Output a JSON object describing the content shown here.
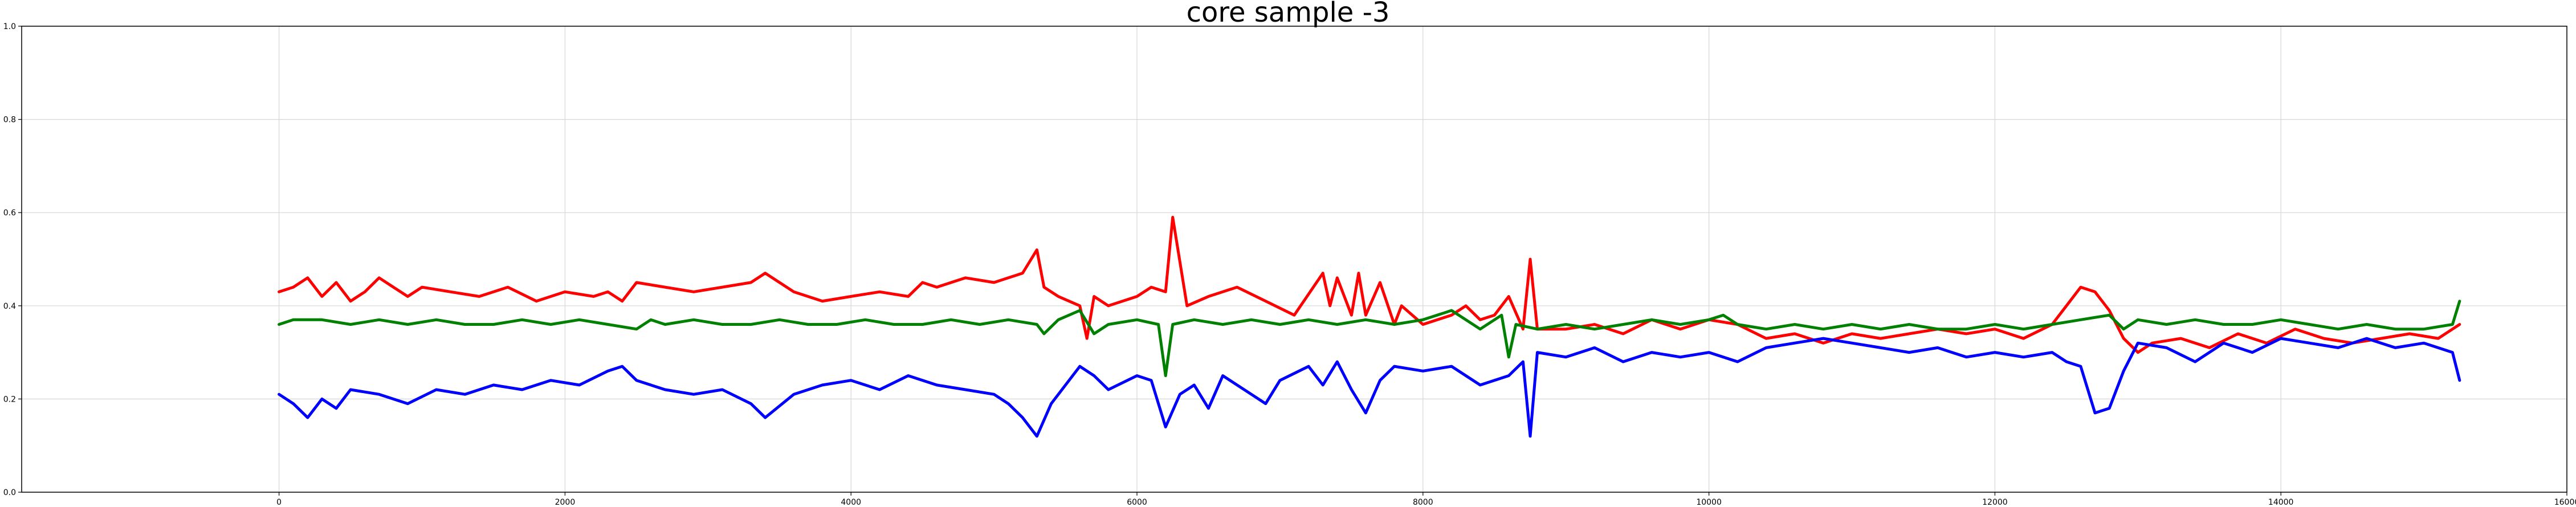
{
  "chart_data": {
    "type": "line",
    "title": "core sample -3",
    "xlabel": "",
    "ylabel": "",
    "xlim": [
      -1800,
      16000
    ],
    "ylim": [
      0.0,
      1.0
    ],
    "xticks": [
      0,
      2000,
      4000,
      6000,
      8000,
      10000,
      12000,
      14000,
      16000
    ],
    "xtick_labels": [
      "0",
      "2000",
      "4000",
      "6000",
      "8000",
      "10000",
      "12000",
      "14000",
      "16000"
    ],
    "yticks": [
      0.0,
      0.2,
      0.4,
      0.6,
      0.8,
      1.0
    ],
    "ytick_labels": [
      "0.0",
      "0.2",
      "0.4",
      "0.6",
      "0.8",
      "1.0"
    ],
    "grid": true,
    "colors": {
      "red": "#ff0000",
      "green": "#008000",
      "blue": "#0000ff",
      "grid": "#d6d6d6"
    },
    "series": [
      {
        "color": "red",
        "x": [
          0,
          100,
          200,
          300,
          400,
          500,
          600,
          700,
          800,
          900,
          1000,
          1200,
          1400,
          1600,
          1800,
          2000,
          2200,
          2300,
          2400,
          2500,
          2700,
          2900,
          3100,
          3300,
          3400,
          3600,
          3800,
          4000,
          4200,
          4400,
          4500,
          4600,
          4800,
          5000,
          5200,
          5300,
          5350,
          5450,
          5600,
          5650,
          5700,
          5800,
          6000,
          6100,
          6200,
          6250,
          6350,
          6500,
          6700,
          6900,
          7100,
          7300,
          7350,
          7400,
          7500,
          7550,
          7600,
          7700,
          7800,
          7850,
          8000,
          8200,
          8300,
          8400,
          8500,
          8600,
          8700,
          8750,
          8800,
          9000,
          9200,
          9400,
          9600,
          9800,
          10000,
          10200,
          10400,
          10600,
          10800,
          11000,
          11200,
          11400,
          11600,
          11800,
          12000,
          12200,
          12400,
          12500,
          12600,
          12700,
          12800,
          12900,
          13000,
          13100,
          13300,
          13500,
          13700,
          13900,
          14100,
          14300,
          14500,
          14700,
          14900,
          15100,
          15200,
          15250
        ],
        "y": [
          0.43,
          0.44,
          0.46,
          0.42,
          0.45,
          0.41,
          0.43,
          0.46,
          0.44,
          0.42,
          0.44,
          0.43,
          0.42,
          0.44,
          0.41,
          0.43,
          0.42,
          0.43,
          0.41,
          0.45,
          0.44,
          0.43,
          0.44,
          0.45,
          0.47,
          0.43,
          0.41,
          0.42,
          0.43,
          0.42,
          0.45,
          0.44,
          0.46,
          0.45,
          0.47,
          0.52,
          0.44,
          0.42,
          0.4,
          0.33,
          0.42,
          0.4,
          0.42,
          0.44,
          0.43,
          0.59,
          0.4,
          0.42,
          0.44,
          0.41,
          0.38,
          0.47,
          0.4,
          0.46,
          0.38,
          0.47,
          0.38,
          0.45,
          0.36,
          0.4,
          0.36,
          0.38,
          0.4,
          0.37,
          0.38,
          0.42,
          0.35,
          0.5,
          0.35,
          0.35,
          0.36,
          0.34,
          0.37,
          0.35,
          0.37,
          0.36,
          0.33,
          0.34,
          0.32,
          0.34,
          0.33,
          0.34,
          0.35,
          0.34,
          0.35,
          0.33,
          0.36,
          0.4,
          0.44,
          0.43,
          0.39,
          0.33,
          0.3,
          0.32,
          0.33,
          0.31,
          0.34,
          0.32,
          0.35,
          0.33,
          0.32,
          0.33,
          0.34,
          0.33,
          0.35,
          0.36
        ]
      },
      {
        "color": "green",
        "x": [
          0,
          100,
          300,
          500,
          700,
          900,
          1100,
          1300,
          1500,
          1700,
          1900,
          2100,
          2300,
          2500,
          2600,
          2700,
          2900,
          3100,
          3300,
          3500,
          3700,
          3900,
          4100,
          4300,
          4500,
          4700,
          4900,
          5100,
          5300,
          5350,
          5450,
          5600,
          5700,
          5800,
          6000,
          6150,
          6200,
          6250,
          6400,
          6600,
          6800,
          7000,
          7200,
          7400,
          7600,
          7800,
          8000,
          8200,
          8400,
          8550,
          8600,
          8650,
          8800,
          9000,
          9200,
          9400,
          9600,
          9800,
          10000,
          10100,
          10200,
          10400,
          10600,
          10800,
          11000,
          11200,
          11400,
          11600,
          11800,
          12000,
          12200,
          12400,
          12600,
          12800,
          12900,
          13000,
          13200,
          13400,
          13600,
          13800,
          14000,
          14200,
          14400,
          14600,
          14800,
          15000,
          15200,
          15250
        ],
        "y": [
          0.36,
          0.37,
          0.37,
          0.36,
          0.37,
          0.36,
          0.37,
          0.36,
          0.36,
          0.37,
          0.36,
          0.37,
          0.36,
          0.35,
          0.37,
          0.36,
          0.37,
          0.36,
          0.36,
          0.37,
          0.36,
          0.36,
          0.37,
          0.36,
          0.36,
          0.37,
          0.36,
          0.37,
          0.36,
          0.34,
          0.37,
          0.39,
          0.34,
          0.36,
          0.37,
          0.36,
          0.25,
          0.36,
          0.37,
          0.36,
          0.37,
          0.36,
          0.37,
          0.36,
          0.37,
          0.36,
          0.37,
          0.39,
          0.35,
          0.38,
          0.29,
          0.36,
          0.35,
          0.36,
          0.35,
          0.36,
          0.37,
          0.36,
          0.37,
          0.38,
          0.36,
          0.35,
          0.36,
          0.35,
          0.36,
          0.35,
          0.36,
          0.35,
          0.35,
          0.36,
          0.35,
          0.36,
          0.37,
          0.38,
          0.35,
          0.37,
          0.36,
          0.37,
          0.36,
          0.36,
          0.37,
          0.36,
          0.35,
          0.36,
          0.35,
          0.35,
          0.36,
          0.41
        ]
      },
      {
        "color": "blue",
        "x": [
          0,
          100,
          200,
          300,
          400,
          500,
          700,
          900,
          1100,
          1300,
          1500,
          1700,
          1900,
          2100,
          2300,
          2400,
          2500,
          2700,
          2900,
          3100,
          3300,
          3400,
          3600,
          3800,
          4000,
          4200,
          4400,
          4600,
          4800,
          5000,
          5100,
          5200,
          5300,
          5400,
          5500,
          5600,
          5700,
          5800,
          6000,
          6100,
          6200,
          6300,
          6400,
          6500,
          6600,
          6800,
          6900,
          7000,
          7200,
          7300,
          7400,
          7500,
          7600,
          7700,
          7800,
          8000,
          8200,
          8400,
          8600,
          8700,
          8750,
          8800,
          9000,
          9200,
          9400,
          9600,
          9800,
          10000,
          10200,
          10400,
          10600,
          10800,
          11000,
          11200,
          11400,
          11600,
          11800,
          12000,
          12200,
          12400,
          12500,
          12600,
          12700,
          12800,
          12900,
          13000,
          13200,
          13400,
          13600,
          13800,
          14000,
          14200,
          14400,
          14600,
          14800,
          15000,
          15200,
          15250
        ],
        "y": [
          0.21,
          0.19,
          0.16,
          0.2,
          0.18,
          0.22,
          0.21,
          0.19,
          0.22,
          0.21,
          0.23,
          0.22,
          0.24,
          0.23,
          0.26,
          0.27,
          0.24,
          0.22,
          0.21,
          0.22,
          0.19,
          0.16,
          0.21,
          0.23,
          0.24,
          0.22,
          0.25,
          0.23,
          0.22,
          0.21,
          0.19,
          0.16,
          0.12,
          0.19,
          0.23,
          0.27,
          0.25,
          0.22,
          0.25,
          0.24,
          0.14,
          0.21,
          0.23,
          0.18,
          0.25,
          0.21,
          0.19,
          0.24,
          0.27,
          0.23,
          0.28,
          0.22,
          0.17,
          0.24,
          0.27,
          0.26,
          0.27,
          0.23,
          0.25,
          0.28,
          0.12,
          0.3,
          0.29,
          0.31,
          0.28,
          0.3,
          0.29,
          0.3,
          0.28,
          0.31,
          0.32,
          0.33,
          0.32,
          0.31,
          0.3,
          0.31,
          0.29,
          0.3,
          0.29,
          0.3,
          0.28,
          0.27,
          0.17,
          0.18,
          0.26,
          0.32,
          0.31,
          0.28,
          0.32,
          0.3,
          0.33,
          0.32,
          0.31,
          0.33,
          0.31,
          0.32,
          0.3,
          0.24
        ]
      }
    ]
  }
}
